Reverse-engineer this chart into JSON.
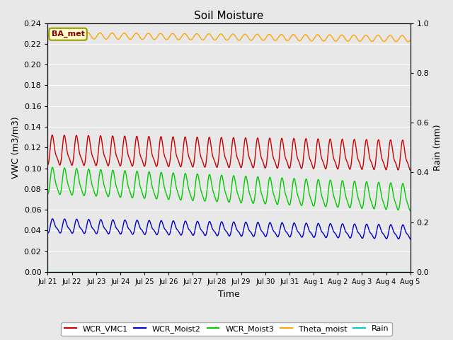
{
  "title": "Soil Moisture",
  "xlabel": "Time",
  "ylabel_left": "VWC (m3/m3)",
  "ylabel_right": "Rain (mm)",
  "ylim_left": [
    0.0,
    0.24
  ],
  "ylim_right": [
    0.0,
    1.0
  ],
  "yticks_left": [
    0.0,
    0.02,
    0.04,
    0.06,
    0.08,
    0.1,
    0.12,
    0.14,
    0.16,
    0.18,
    0.2,
    0.22,
    0.24
  ],
  "yticks_right": [
    0.0,
    0.2,
    0.4,
    0.6,
    0.8,
    1.0
  ],
  "xtick_labels": [
    "Jul 21",
    "Jul 22",
    "Jul 23",
    "Jul 24",
    "Jul 25",
    "Jul 26",
    "Jul 27",
    "Jul 28",
    "Jul 29",
    "Jul 30",
    "Jul 31",
    "Aug 1",
    "Aug 2",
    "Aug 3",
    "Aug 4",
    "Aug 5"
  ],
  "n_days": 15,
  "colors": {
    "WCR_VMC1": "#cc0000",
    "WCR_Moist2": "#0000cc",
    "WCR_Moist3": "#00cc00",
    "Theta_moist": "#ffa500",
    "Rain": "#00cccc"
  },
  "legend_label": "BA_met",
  "background_color": "#e8e8e8",
  "grid_color": "#ffffff",
  "fig_bg": "#e8e8e8"
}
